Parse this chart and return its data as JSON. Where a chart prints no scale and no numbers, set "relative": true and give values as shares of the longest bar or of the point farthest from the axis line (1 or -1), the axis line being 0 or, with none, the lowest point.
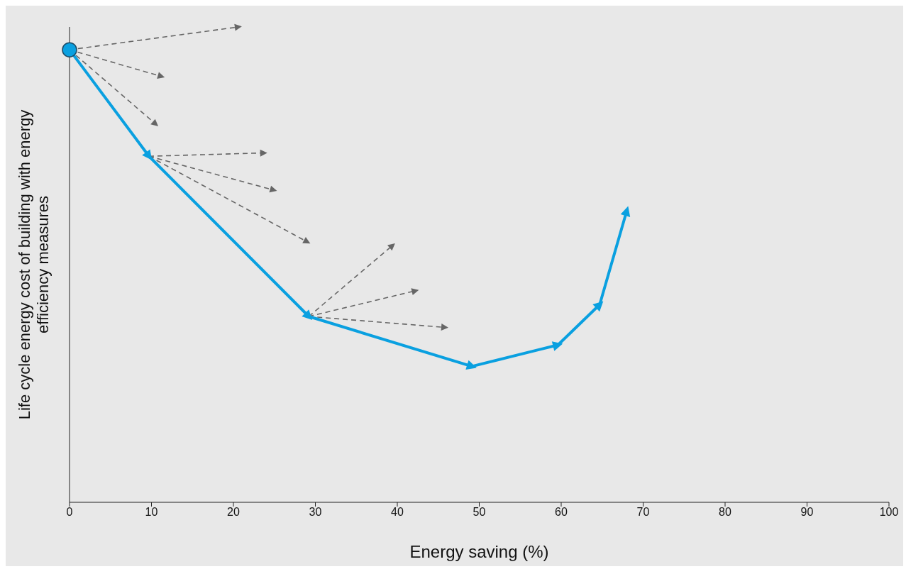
{
  "chart_data": {
    "type": "line",
    "relative": true,
    "xlabel": "Energy saving (%)",
    "ylabel": "Life cycle energy  cost of building with energy\nefficiency measures",
    "xlim": [
      0,
      100
    ],
    "xticks": [
      0,
      10,
      20,
      30,
      40,
      50,
      60,
      70,
      80,
      90,
      100
    ],
    "series": [
      {
        "color": "#666666",
        "line_style": "dashed",
        "x": [
          0,
          20.6
        ],
        "values": [
          0.952,
          1.0
        ]
      },
      {
        "color": "#666666",
        "line_style": "dashed",
        "x": [
          0,
          11.2
        ],
        "values": [
          0.952,
          0.896
        ]
      },
      {
        "color": "#666666",
        "line_style": "dashed",
        "x": [
          0,
          10.5
        ],
        "values": [
          0.952,
          0.796
        ]
      },
      {
        "color": "#666666",
        "line_style": "dashed",
        "x": [
          9.7,
          23.7
        ],
        "values": [
          0.728,
          0.735
        ]
      },
      {
        "color": "#666666",
        "line_style": "dashed",
        "x": [
          9.7,
          24.9
        ],
        "values": [
          0.728,
          0.657
        ]
      },
      {
        "color": "#666666",
        "line_style": "dashed",
        "x": [
          9.7,
          29.0
        ],
        "values": [
          0.728,
          0.548
        ]
      },
      {
        "color": "#666666",
        "line_style": "dashed",
        "x": [
          29.2,
          39.4
        ],
        "values": [
          0.391,
          0.54
        ]
      },
      {
        "color": "#666666",
        "line_style": "dashed",
        "x": [
          29.2,
          42.2
        ],
        "values": [
          0.391,
          0.445
        ]
      },
      {
        "color": "#666666",
        "line_style": "dashed",
        "x": [
          29.2,
          45.8
        ],
        "values": [
          0.391,
          0.368
        ]
      },
      {
        "color": "#0aa0e0",
        "line_style": "solid",
        "marker": "circle",
        "x": [
          0,
          9.7,
          29.2,
          49.1,
          59.6,
          64.7,
          68.0
        ],
        "values": [
          0.952,
          0.728,
          0.391,
          0.286,
          0.331,
          0.416,
          0.613
        ]
      }
    ]
  }
}
